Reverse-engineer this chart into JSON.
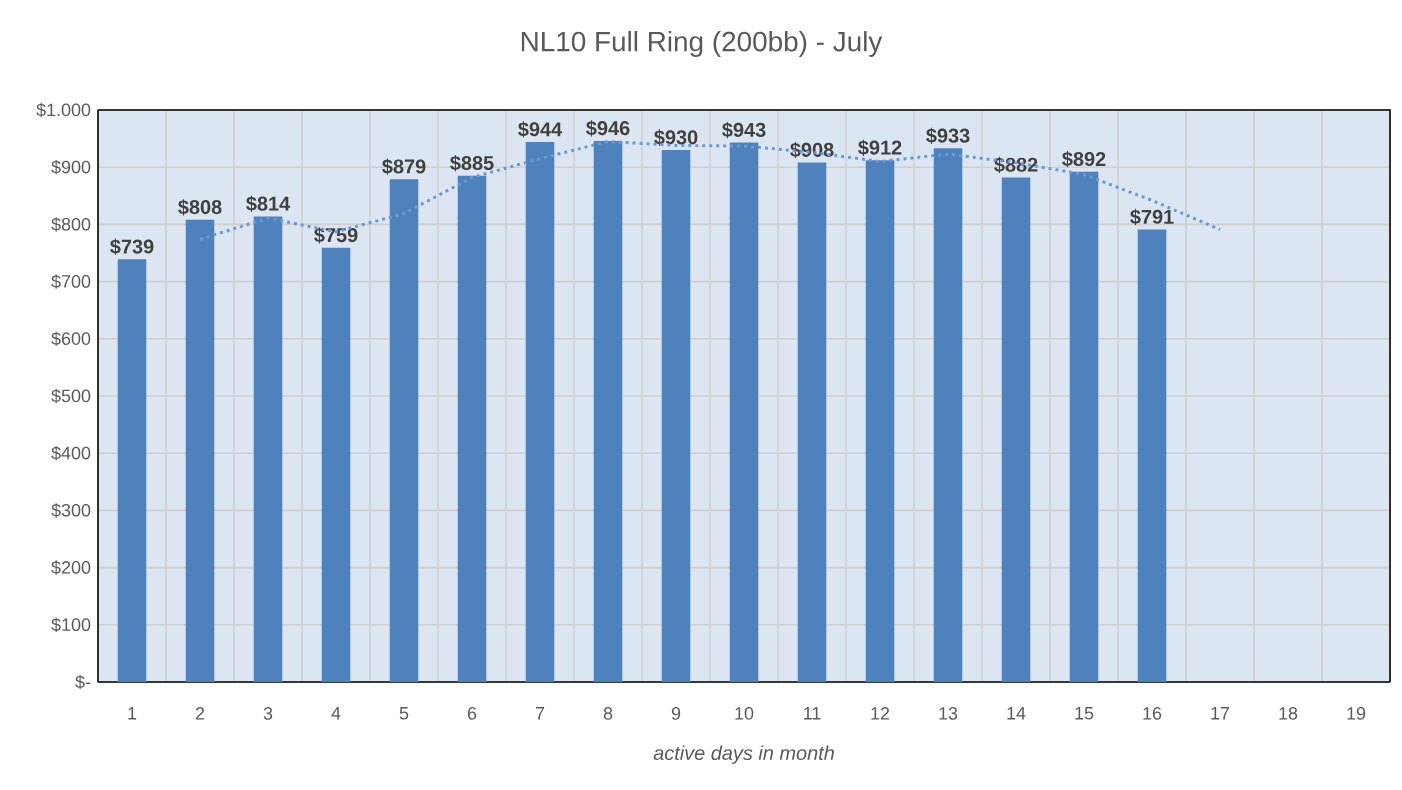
{
  "chart_data": {
    "type": "bar",
    "title": "NL10 Full Ring (200bb) - July",
    "xlabel": "active days in month",
    "categories": [
      "1",
      "2",
      "3",
      "4",
      "5",
      "6",
      "7",
      "8",
      "9",
      "10",
      "11",
      "12",
      "13",
      "14",
      "15",
      "16",
      "17",
      "18",
      "19"
    ],
    "series": [
      {
        "color": "#4f81bd",
        "values": [
          739,
          808,
          814,
          759,
          879,
          885,
          944,
          946,
          930,
          943,
          908,
          912,
          933,
          882,
          892,
          791,
          null,
          null,
          null
        ],
        "value_labels": [
          "$739",
          "$808",
          "$814",
          "$759",
          "$879",
          "$885",
          "$944",
          "$946",
          "$930",
          "$943",
          "$908",
          "$912",
          "$933",
          "$882",
          "$892",
          "$791",
          null,
          null,
          null
        ]
      },
      {
        "type": "line",
        "color": "#6a9ad6",
        "line_style": "dotted",
        "values": [
          null,
          774,
          811,
          787,
          819,
          882,
          915,
          945,
          938,
          937,
          926,
          910,
          923,
          908,
          887,
          842,
          791,
          null,
          null
        ]
      }
    ],
    "ylim": [
      0,
      1000
    ],
    "yticks": [
      {
        "value": 0,
        "label": "$-"
      },
      {
        "value": 100,
        "label": "$100"
      },
      {
        "value": 200,
        "label": "$200"
      },
      {
        "value": 300,
        "label": "$300"
      },
      {
        "value": 400,
        "label": "$400"
      },
      {
        "value": 500,
        "label": "$500"
      },
      {
        "value": 600,
        "label": "$600"
      },
      {
        "value": 700,
        "label": "$700"
      },
      {
        "value": 800,
        "label": "$800"
      },
      {
        "value": 900,
        "label": "$900"
      },
      {
        "value": 1000,
        "label": "$1.000"
      }
    ],
    "grid": true
  }
}
